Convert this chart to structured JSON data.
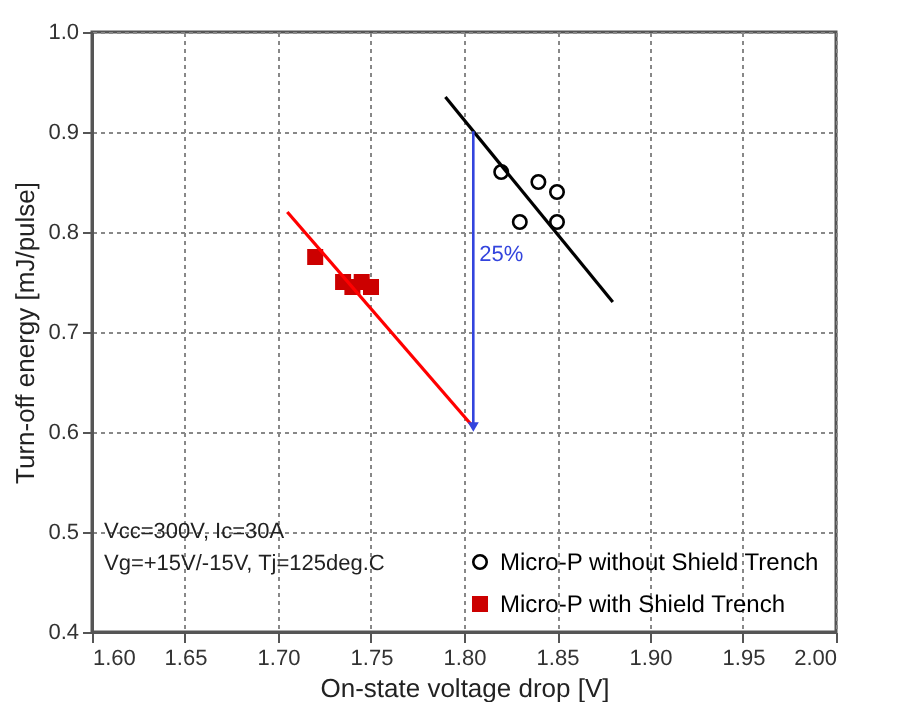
{
  "chart_data": {
    "type": "scatter",
    "xlabel": "On-state voltage drop [V]",
    "ylabel": "Turn-off energy [mJ/pulse]",
    "xlim": [
      1.6,
      2.0
    ],
    "xticks": [
      {
        "value": 1.6,
        "label": "1.60"
      },
      {
        "value": 1.65,
        "label": "1.65"
      },
      {
        "value": 1.7,
        "label": "1.70"
      },
      {
        "value": 1.75,
        "label": "1.75"
      },
      {
        "value": 1.8,
        "label": "1.80"
      },
      {
        "value": 1.85,
        "label": "1.85"
      },
      {
        "value": 1.9,
        "label": "1.90"
      },
      {
        "value": 1.95,
        "label": "1.95"
      },
      {
        "value": 2.0,
        "label": "2.00"
      }
    ],
    "ylim": [
      0.4,
      1.0
    ],
    "yticks": [
      0.4,
      0.5,
      0.6,
      0.7,
      0.8,
      0.9,
      {
        "value": 1.0,
        "label": "1.0"
      }
    ],
    "grid": true,
    "legend": "bottom right",
    "series": [
      {
        "name": "Micro-P without Shield Trench",
        "marker": "circle",
        "color": "#000000",
        "x": [
          1.82,
          1.83,
          1.84,
          1.85,
          1.85
        ],
        "values": [
          0.86,
          0.81,
          0.85,
          0.84,
          0.81
        ]
      },
      {
        "name": "Micro-P with Shield Trench",
        "marker": "square",
        "color": "#cc0000",
        "x": [
          1.72,
          1.735,
          1.74,
          1.745,
          1.75
        ],
        "values": [
          0.775,
          0.75,
          0.745,
          0.75,
          0.745
        ]
      },
      {
        "type": "line",
        "color": "#000000",
        "x": [
          1.79,
          1.88
        ],
        "values": [
          0.935,
          0.73
        ]
      },
      {
        "type": "line",
        "color": "#ff0000",
        "x": [
          1.705,
          1.805
        ],
        "values": [
          0.82,
          0.605
        ]
      }
    ],
    "annotations": [
      "25%",
      "Vcc=300V, Ic=30A",
      "Vg=+15V/-15V, Tj=125deg.C"
    ]
  }
}
